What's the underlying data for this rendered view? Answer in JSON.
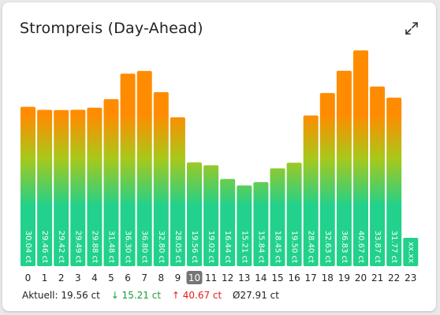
{
  "card": {
    "title": "Strompreis (Day-Ahead)",
    "expand_icon": "expand-icon"
  },
  "colors": {
    "bar_top": "#ff8c00",
    "bar_mid": "#a8c81a",
    "bar_bottom": "#22d18b",
    "current_hour_bg": "#757575",
    "min_color": "#1a9a3a",
    "max_color": "#e0201a"
  },
  "chart_data": {
    "type": "bar",
    "categories": [
      "0",
      "1",
      "2",
      "3",
      "4",
      "5",
      "6",
      "7",
      "8",
      "9",
      "10",
      "11",
      "12",
      "13",
      "14",
      "15",
      "16",
      "17",
      "18",
      "19",
      "20",
      "21",
      "22",
      "23"
    ],
    "values": [
      30.04,
      29.46,
      29.42,
      29.49,
      29.88,
      31.48,
      36.3,
      36.8,
      32.8,
      28.05,
      19.56,
      19.02,
      16.44,
      15.21,
      15.84,
      18.45,
      19.5,
      28.4,
      32.63,
      36.83,
      40.67,
      33.87,
      31.77,
      null
    ],
    "labels": [
      "30.04 ct",
      "29.46 ct",
      "29.42 ct",
      "29.49 ct",
      "29.88 ct",
      "31.48 ct",
      "36.30 ct",
      "36.80 ct",
      "32.80 ct",
      "28.05 ct",
      "19.56 ct",
      "19.02 ct",
      "16.44 ct",
      "15.21 ct",
      "15.84 ct",
      "18.45 ct",
      "19.50 ct",
      "28.40 ct",
      "32.63 ct",
      "36.83 ct",
      "40.67 ct",
      "33.87 ct",
      "31.77 ct",
      "xx.xx"
    ],
    "current_hour": 10,
    "ylim": [
      0,
      45
    ],
    "grid": false,
    "legend": "none"
  },
  "footer": {
    "current": "Aktuell: 19.56 ct",
    "min": "↓ 15.21 ct",
    "max": "↑ 40.67 ct",
    "avg": "Ø27.91 ct"
  }
}
